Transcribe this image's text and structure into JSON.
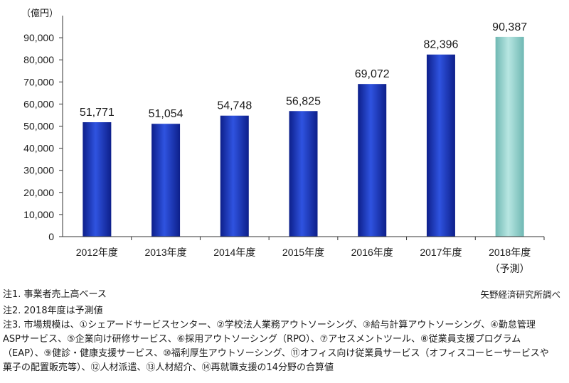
{
  "chart_data": {
    "type": "bar",
    "unit_label": "（億円）",
    "categories": [
      "2012年度",
      "2013年度",
      "2014年度",
      "2015年度",
      "2016年度",
      "2017年度",
      "2018年度"
    ],
    "category_sublabels": [
      "",
      "",
      "",
      "",
      "",
      "",
      "（予測）"
    ],
    "values": [
      51771,
      51054,
      54748,
      56825,
      69072,
      82396,
      90387
    ],
    "value_labels": [
      "51,771",
      "51,054",
      "54,748",
      "56,825",
      "69,072",
      "82,396",
      "90,387"
    ],
    "forecast": [
      false,
      false,
      false,
      false,
      false,
      false,
      true
    ],
    "ylim": [
      0,
      100000
    ],
    "yticks": [
      0,
      10000,
      20000,
      30000,
      40000,
      50000,
      60000,
      70000,
      80000,
      90000
    ],
    "ytick_labels": [
      "0",
      "10,000",
      "20,000",
      "30,000",
      "40,000",
      "50,000",
      "60,000",
      "70,000",
      "80,000",
      "90,000"
    ],
    "grid": false,
    "colors": {
      "actual": "#1f3cc0",
      "forecast": "#8fcfca"
    }
  },
  "notes": {
    "note1": "注1. 事業者売上高ベース",
    "source": "矢野経済研究所調べ",
    "note2": "注2. 2018年度は予測値",
    "note3_line1": "注3. 市場規模は、①シェアードサービスセンター、②学校法人業務アウトソーシング、③給与計算アウトソーシング、④勤怠管理",
    "note3_line2": "ASPサービス、⑤企業向け研修サービス、⑥採用アウトソーシング（RPO）、⑦アセスメントツール、⑧従業員支援プログラム",
    "note3_line3": "（EAP）、⑨健診・健康支援サービス、⑩福利厚生アウトソーシング、⑪オフィス向け従業員サービス（オフィスコーヒーサービスや",
    "note3_line4": "菓子の配置販売等）、⑫人材派遣、⑬人材紹介、⑭再就職支援の14分野の合算値"
  }
}
